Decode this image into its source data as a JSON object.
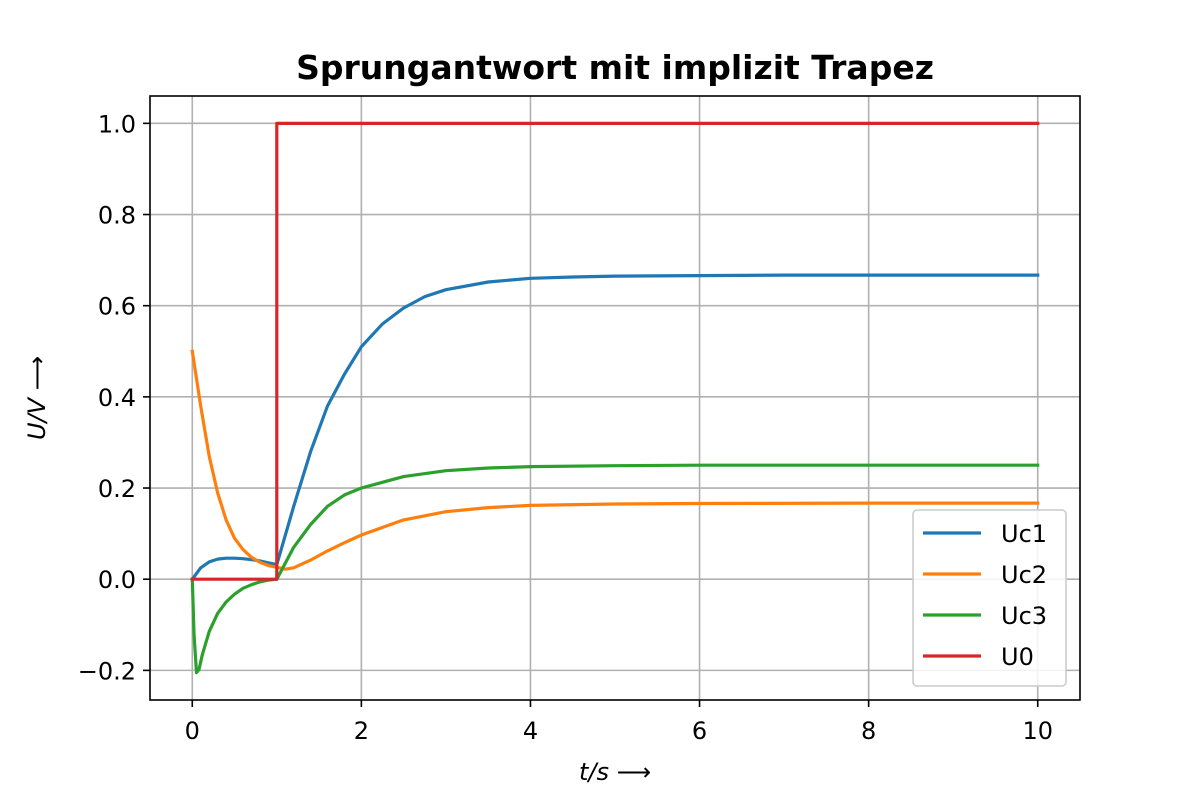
{
  "chart_data": {
    "type": "line",
    "title": "Sprungantwort mit implizit Trapez",
    "xlabel": "t/s ⟶",
    "ylabel": "U/V ⟶",
    "xlim": [
      -0.5,
      10.5
    ],
    "ylim": [
      -0.265,
      1.06
    ],
    "x_ticks": [
      0,
      2,
      4,
      6,
      8,
      10
    ],
    "x_tick_labels": [
      "0",
      "2",
      "4",
      "6",
      "8",
      "10"
    ],
    "y_ticks": [
      -0.2,
      0.0,
      0.2,
      0.4,
      0.6,
      0.8,
      1.0
    ],
    "y_tick_labels": [
      "−0.2",
      "0.0",
      "0.2",
      "0.4",
      "0.6",
      "0.8",
      "1.0"
    ],
    "grid": true,
    "legend_position": "lower-right",
    "series": [
      {
        "name": "Uc1",
        "color": "#1f77b4",
        "x": [
          0,
          0.1,
          0.2,
          0.3,
          0.4,
          0.5,
          0.6,
          0.7,
          0.8,
          0.9,
          1.0,
          1.2,
          1.4,
          1.6,
          1.8,
          2.0,
          2.25,
          2.5,
          2.75,
          3.0,
          3.5,
          4.0,
          4.5,
          5.0,
          6.0,
          7.0,
          8.0,
          10.0
        ],
        "y": [
          0,
          0.025,
          0.038,
          0.044,
          0.046,
          0.046,
          0.045,
          0.043,
          0.04,
          0.036,
          0.032,
          0.16,
          0.28,
          0.38,
          0.45,
          0.51,
          0.56,
          0.595,
          0.62,
          0.635,
          0.652,
          0.66,
          0.663,
          0.665,
          0.666,
          0.667,
          0.667,
          0.667
        ]
      },
      {
        "name": "Uc2",
        "color": "#ff7f0e",
        "x": [
          0,
          0.1,
          0.2,
          0.3,
          0.4,
          0.5,
          0.6,
          0.7,
          0.8,
          0.9,
          1.0,
          1.1,
          1.2,
          1.4,
          1.6,
          1.8,
          2.0,
          2.5,
          3.0,
          3.5,
          4.0,
          5.0,
          6.0,
          8.0,
          10.0
        ],
        "y": [
          0.5,
          0.38,
          0.27,
          0.19,
          0.13,
          0.09,
          0.065,
          0.048,
          0.037,
          0.03,
          0.026,
          0.022,
          0.025,
          0.042,
          0.062,
          0.08,
          0.097,
          0.13,
          0.148,
          0.157,
          0.162,
          0.165,
          0.166,
          0.167,
          0.167
        ]
      },
      {
        "name": "Uc3",
        "color": "#2ca02c",
        "x": [
          0,
          0.02,
          0.05,
          0.08,
          0.12,
          0.2,
          0.3,
          0.4,
          0.5,
          0.6,
          0.7,
          0.8,
          0.9,
          1.0,
          1.2,
          1.4,
          1.6,
          1.8,
          2.0,
          2.5,
          3.0,
          3.5,
          4.0,
          5.0,
          6.0,
          8.0,
          10.0
        ],
        "y": [
          0,
          -0.12,
          -0.205,
          -0.198,
          -0.165,
          -0.115,
          -0.075,
          -0.05,
          -0.033,
          -0.02,
          -0.012,
          -0.006,
          -0.002,
          0.0,
          0.07,
          0.12,
          0.16,
          0.185,
          0.2,
          0.225,
          0.238,
          0.244,
          0.247,
          0.249,
          0.25,
          0.25,
          0.25
        ]
      },
      {
        "name": "U0",
        "color": "#d62728",
        "x": [
          0,
          1.0,
          1.0,
          10.0
        ],
        "y": [
          0,
          0,
          1.0,
          1.0
        ]
      }
    ]
  }
}
